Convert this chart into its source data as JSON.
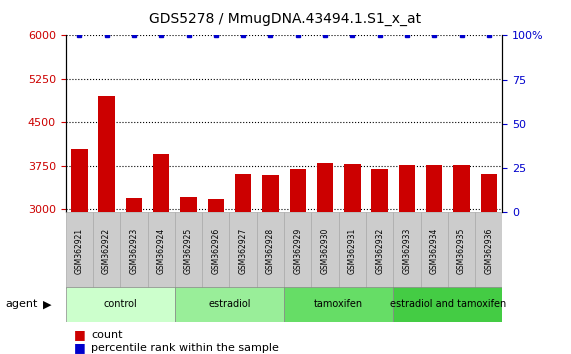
{
  "title": "GDS5278 / MmugDNA.43494.1.S1_x_at",
  "samples": [
    "GSM362921",
    "GSM362922",
    "GSM362923",
    "GSM362924",
    "GSM362925",
    "GSM362926",
    "GSM362927",
    "GSM362928",
    "GSM362929",
    "GSM362930",
    "GSM362931",
    "GSM362932",
    "GSM362933",
    "GSM362934",
    "GSM362935",
    "GSM362936"
  ],
  "counts": [
    4050,
    4950,
    3200,
    3950,
    3220,
    3180,
    3620,
    3590,
    3700,
    3800,
    3780,
    3700,
    3760,
    3760,
    3760,
    3610
  ],
  "percentiles": [
    100,
    100,
    100,
    100,
    100,
    100,
    100,
    100,
    100,
    100,
    100,
    100,
    100,
    100,
    100,
    100
  ],
  "ylim_left": [
    2950,
    6000
  ],
  "ylim_right": [
    0,
    100
  ],
  "yticks_left": [
    3000,
    3750,
    4500,
    5250,
    6000
  ],
  "yticks_right": [
    0,
    25,
    50,
    75,
    100
  ],
  "groups": [
    {
      "label": "control",
      "start": 0,
      "end": 4,
      "color": "#ccffcc"
    },
    {
      "label": "estradiol",
      "start": 4,
      "end": 8,
      "color": "#99ee99"
    },
    {
      "label": "tamoxifen",
      "start": 8,
      "end": 12,
      "color": "#66dd66"
    },
    {
      "label": "estradiol and tamoxifen",
      "start": 12,
      "end": 16,
      "color": "#44cc44"
    }
  ],
  "bar_color": "#cc0000",
  "dot_color": "#0000cc",
  "agent_label": "agent",
  "legend_count_color": "#cc0000",
  "legend_pct_color": "#0000cc",
  "grid_color": "#000000",
  "background_color": "#ffffff",
  "tick_label_color_left": "#cc0000",
  "tick_label_color_right": "#0000cc",
  "sample_box_color": "#cccccc",
  "sample_box_edge": "#aaaaaa"
}
